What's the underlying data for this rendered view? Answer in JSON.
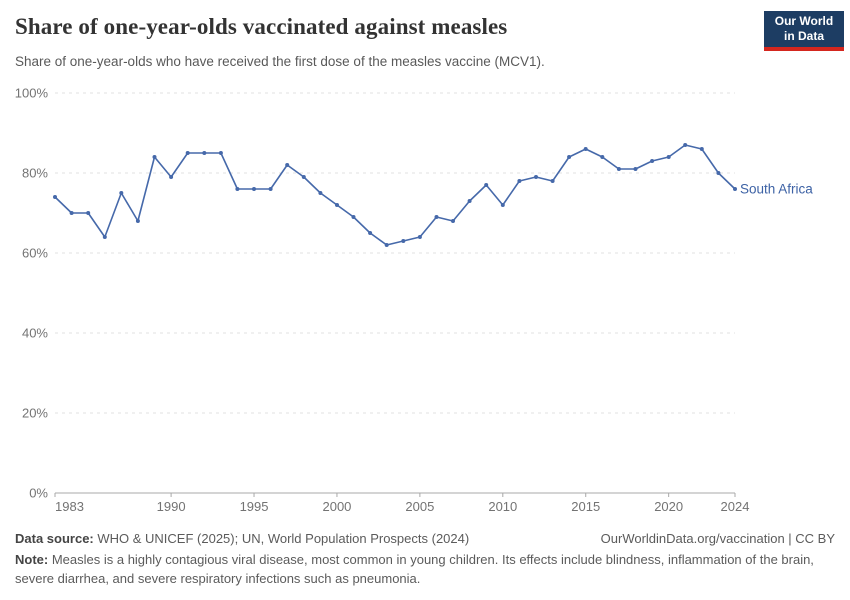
{
  "header": {
    "title": "Share of one-year-olds vaccinated against measles",
    "subtitle": "Share of one-year-olds who have received the first dose of the measles vaccine (MCV1)."
  },
  "logo": {
    "line1": "Our World",
    "line2": "in Data",
    "bg_color": "#1d3d63",
    "bar_color": "#d4261e"
  },
  "chart_data": {
    "type": "line",
    "title": "Share of one-year-olds vaccinated against measles",
    "subtitle": "Share of one-year-olds who have received the first dose of the measles vaccine (MCV1).",
    "entity": "South Africa",
    "unit": "%",
    "x": [
      1983,
      1984,
      1985,
      1986,
      1987,
      1988,
      1989,
      1990,
      1991,
      1992,
      1993,
      1994,
      1995,
      1996,
      1997,
      1998,
      1999,
      2000,
      2001,
      2002,
      2003,
      2004,
      2005,
      2006,
      2007,
      2008,
      2009,
      2010,
      2011,
      2012,
      2013,
      2014,
      2015,
      2016,
      2017,
      2018,
      2019,
      2020,
      2021,
      2022,
      2023,
      2024
    ],
    "values": [
      74,
      70,
      70,
      64,
      75,
      68,
      84,
      79,
      85,
      85,
      85,
      76,
      76,
      76,
      82,
      79,
      75,
      72,
      69,
      65,
      62,
      63,
      64,
      69,
      68,
      73,
      77,
      72,
      78,
      79,
      78,
      84,
      86,
      84,
      81,
      81,
      83,
      84,
      87,
      86,
      80,
      76
    ],
    "ylim": [
      0,
      100
    ],
    "yticks": [
      0,
      20,
      40,
      60,
      80,
      100
    ],
    "ytick_labels": [
      "0%",
      "20%",
      "40%",
      "60%",
      "80%",
      "100%"
    ],
    "xticks": [
      1983,
      1990,
      1995,
      2000,
      2005,
      2010,
      2015,
      2020,
      2024
    ],
    "grid": "horizontal-dashed",
    "legend_position": "end-of-line",
    "line_color": "#4669aa",
    "label_color": "#3d62a5",
    "grid_color": "#e0e0e0",
    "axis_color": "#a8a8a8",
    "tick_text_color": "#737373"
  },
  "footer": {
    "source_label": "Data source:",
    "source_text": " WHO & UNICEF (2025); UN, World Population Prospects (2024)",
    "attribution": "OurWorldinData.org/vaccination | CC BY",
    "note_label": "Note:",
    "note_text": " Measles is a highly contagious viral disease, most common in young children. Its effects include blindness, inflammation of the brain, severe diarrhea, and severe respiratory infections such as pneumonia."
  }
}
